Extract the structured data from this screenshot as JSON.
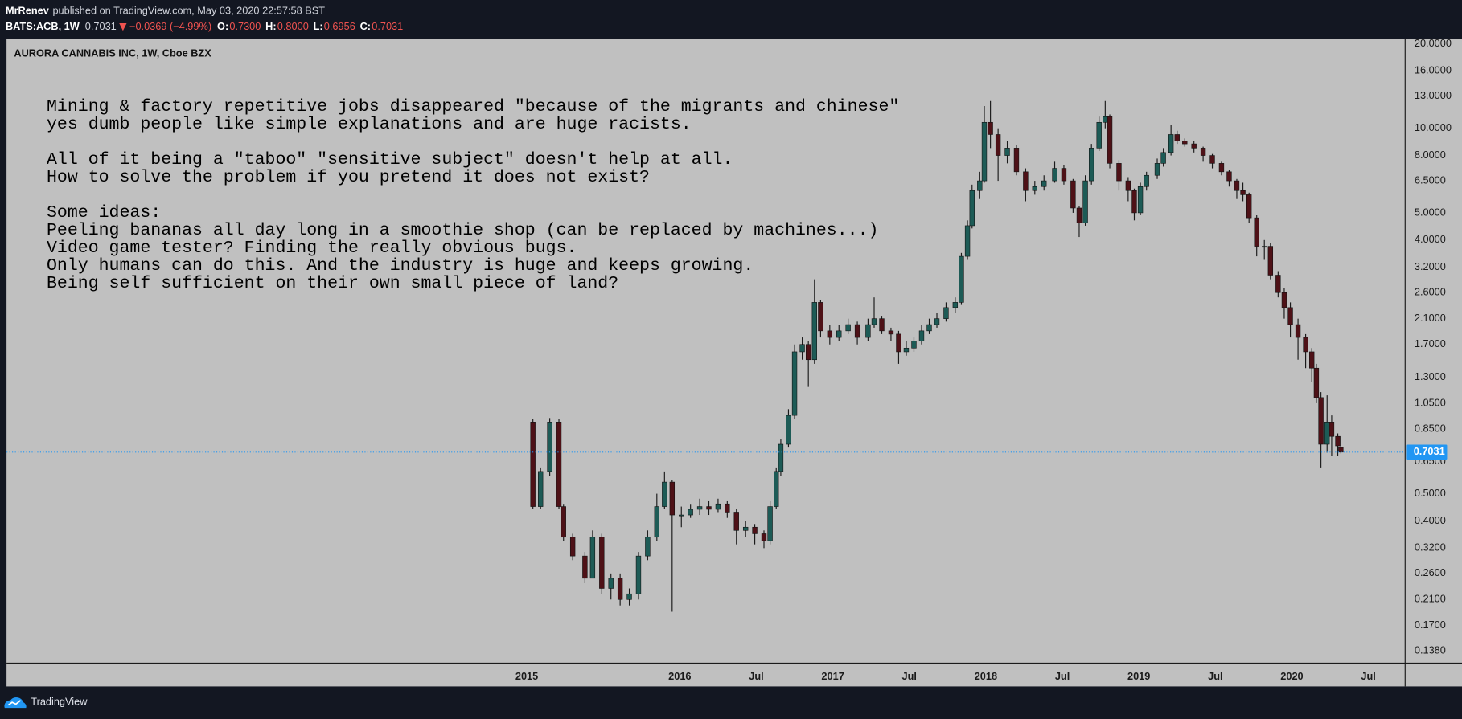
{
  "header": {
    "author": "MrRenev",
    "published": "published on TradingView.com, May 03, 2020 22:57:58 BST",
    "symbol": "BATS:ACB, 1W",
    "price": "0.7031",
    "change": "−0.0369 (−4.99%)",
    "ohlc": [
      {
        "label": "O:",
        "value": "0.7300"
      },
      {
        "label": "H:",
        "value": "0.8000"
      },
      {
        "label": "L:",
        "value": "0.6956"
      },
      {
        "label": "C:",
        "value": "0.7031"
      }
    ]
  },
  "footer": {
    "brand": "TradingView"
  },
  "chart_data": {
    "type": "candlestick",
    "title": "AURORA CANNABIS INC, 1W, Cboe BZX",
    "annotation": [
      [
        "Mining & factory repetitive jobs disappeared \"because of the migrants and chinese\"",
        "yes dumb people like simple explanations and are huge racists."
      ],
      [
        "All of it being a \"taboo\" \"sensitive subject\" doesn't help at all.",
        "How to solve the problem if you pretend it does not exist?"
      ],
      [
        "Some ideas:",
        "Peeling bananas all day long in a smoothie shop (can be replaced by machines...)",
        "Video game tester? Finding the really obvious bugs.",
        "Only humans can do this. And the industry is huge and keeps growing.",
        "Being self sufficient on their own small piece of land?"
      ]
    ],
    "x": [
      2015.04,
      2015.09,
      2015.15,
      2015.21,
      2015.24,
      2015.3,
      2015.38,
      2015.43,
      2015.49,
      2015.55,
      2015.61,
      2015.67,
      2015.73,
      2015.79,
      2015.85,
      2015.9,
      2015.95,
      2016.01,
      2016.07,
      2016.13,
      2016.19,
      2016.25,
      2016.31,
      2016.37,
      2016.43,
      2016.49,
      2016.55,
      2016.59,
      2016.63,
      2016.66,
      2016.71,
      2016.75,
      2016.8,
      2016.84,
      2016.88,
      2016.92,
      2016.98,
      2017.04,
      2017.1,
      2017.16,
      2017.23,
      2017.27,
      2017.32,
      2017.38,
      2017.43,
      2017.48,
      2017.53,
      2017.58,
      2017.63,
      2017.68,
      2017.74,
      2017.8,
      2017.84,
      2017.88,
      2017.91,
      2017.96,
      2017.99,
      2018.03,
      2018.08,
      2018.14,
      2018.2,
      2018.26,
      2018.32,
      2018.38,
      2018.45,
      2018.51,
      2018.57,
      2018.61,
      2018.65,
      2018.69,
      2018.74,
      2018.78,
      2018.81,
      2018.87,
      2018.93,
      2018.97,
      2019.01,
      2019.05,
      2019.12,
      2019.16,
      2019.21,
      2019.25,
      2019.3,
      2019.36,
      2019.42,
      2019.48,
      2019.54,
      2019.59,
      2019.64,
      2019.68,
      2019.72,
      2019.77,
      2019.82,
      2019.86,
      2019.91,
      2019.95,
      2019.99,
      2020.04,
      2020.09,
      2020.13,
      2020.16,
      2020.19,
      2020.23,
      2020.26,
      2020.3,
      2020.32
    ],
    "open": [
      0.9,
      0.45,
      0.6,
      0.9,
      0.45,
      0.35,
      0.3,
      0.25,
      0.35,
      0.23,
      0.25,
      0.21,
      0.22,
      0.3,
      0.35,
      0.45,
      0.55,
      0.42,
      0.42,
      0.44,
      0.45,
      0.44,
      0.46,
      0.43,
      0.37,
      0.38,
      0.36,
      0.34,
      0.45,
      0.6,
      0.75,
      0.95,
      1.6,
      1.7,
      1.5,
      2.4,
      1.9,
      1.8,
      1.9,
      2.0,
      1.8,
      2.0,
      2.1,
      1.9,
      1.85,
      1.6,
      1.65,
      1.75,
      1.9,
      2.0,
      2.1,
      2.3,
      2.4,
      3.5,
      4.5,
      6.0,
      6.5,
      10.5,
      9.5,
      8.0,
      8.5,
      7.0,
      6.0,
      6.2,
      6.5,
      7.2,
      6.5,
      5.2,
      4.6,
      6.5,
      8.5,
      10.5,
      11.0,
      7.5,
      6.5,
      6.0,
      5.0,
      6.2,
      6.8,
      7.5,
      8.2,
      9.5,
      9.0,
      8.8,
      8.5,
      8.0,
      7.5,
      7.0,
      6.5,
      6.0,
      5.8,
      4.8,
      3.8,
      3.8,
      3.0,
      2.6,
      2.3,
      2.0,
      1.8,
      1.6,
      1.4,
      1.1,
      0.75,
      0.9,
      0.8,
      0.73
    ],
    "high": [
      0.92,
      0.62,
      0.93,
      0.92,
      0.46,
      0.36,
      0.31,
      0.37,
      0.36,
      0.26,
      0.26,
      0.23,
      0.31,
      0.37,
      0.5,
      0.6,
      0.56,
      0.45,
      0.46,
      0.48,
      0.47,
      0.48,
      0.47,
      0.44,
      0.4,
      0.39,
      0.37,
      0.47,
      0.62,
      0.78,
      1.0,
      1.7,
      1.8,
      1.75,
      2.9,
      2.45,
      2.0,
      2.0,
      2.1,
      2.05,
      2.1,
      2.5,
      2.15,
      1.95,
      1.9,
      1.75,
      1.8,
      2.0,
      2.1,
      2.2,
      2.4,
      2.5,
      3.6,
      4.7,
      6.3,
      7.0,
      12.0,
      12.5,
      10.0,
      9.0,
      8.7,
      7.2,
      6.5,
      6.8,
      7.6,
      7.4,
      6.6,
      5.3,
      6.8,
      8.8,
      11.0,
      12.5,
      11.2,
      7.7,
      6.7,
      6.1,
      6.4,
      7.0,
      7.8,
      8.5,
      10.3,
      9.8,
      9.2,
      9.0,
      8.6,
      8.1,
      7.6,
      7.1,
      6.6,
      6.4,
      5.9,
      4.9,
      4.0,
      3.9,
      3.1,
      2.7,
      2.4,
      2.1,
      1.85,
      1.65,
      1.45,
      1.15,
      1.12,
      0.95,
      0.82,
      0.8
    ],
    "low": [
      0.44,
      0.44,
      0.58,
      0.44,
      0.34,
      0.29,
      0.24,
      0.25,
      0.22,
      0.21,
      0.2,
      0.2,
      0.21,
      0.29,
      0.34,
      0.44,
      0.19,
      0.38,
      0.41,
      0.42,
      0.42,
      0.43,
      0.41,
      0.33,
      0.35,
      0.33,
      0.32,
      0.33,
      0.44,
      0.58,
      0.73,
      0.92,
      1.5,
      1.2,
      1.45,
      1.8,
      1.7,
      1.75,
      1.85,
      1.7,
      1.75,
      1.95,
      1.85,
      1.75,
      1.45,
      1.55,
      1.6,
      1.7,
      1.85,
      1.95,
      2.05,
      2.2,
      2.35,
      3.4,
      4.4,
      5.6,
      6.4,
      8.5,
      6.5,
      7.5,
      6.8,
      5.5,
      5.8,
      6.0,
      6.4,
      6.3,
      5.0,
      4.1,
      4.5,
      6.3,
      8.3,
      10.0,
      7.2,
      6.0,
      5.5,
      4.7,
      4.9,
      6.0,
      6.6,
      7.3,
      8.0,
      8.8,
      8.6,
      8.2,
      7.6,
      7.2,
      6.8,
      6.2,
      5.6,
      5.5,
      4.6,
      3.5,
      3.4,
      2.9,
      2.5,
      2.1,
      1.8,
      1.5,
      1.4,
      1.25,
      1.05,
      0.62,
      0.7,
      0.68,
      0.68,
      0.6956
    ],
    "close": [
      0.45,
      0.6,
      0.9,
      0.45,
      0.35,
      0.3,
      0.25,
      0.35,
      0.23,
      0.25,
      0.21,
      0.22,
      0.3,
      0.35,
      0.45,
      0.55,
      0.42,
      0.42,
      0.44,
      0.45,
      0.44,
      0.46,
      0.43,
      0.37,
      0.38,
      0.36,
      0.34,
      0.45,
      0.6,
      0.75,
      0.95,
      1.6,
      1.7,
      1.5,
      2.4,
      1.9,
      1.8,
      1.9,
      2.0,
      1.8,
      2.0,
      2.1,
      1.9,
      1.85,
      1.6,
      1.65,
      1.75,
      1.9,
      2.0,
      2.1,
      2.3,
      2.4,
      3.5,
      4.5,
      6.0,
      6.5,
      10.5,
      9.5,
      8.0,
      8.5,
      7.0,
      6.0,
      6.2,
      6.5,
      7.2,
      6.5,
      5.2,
      4.6,
      6.5,
      8.5,
      10.5,
      11.0,
      7.5,
      6.5,
      6.0,
      5.0,
      6.2,
      6.8,
      7.5,
      8.2,
      9.5,
      9.0,
      8.8,
      8.5,
      8.0,
      7.5,
      7.0,
      6.5,
      6.0,
      5.8,
      4.8,
      3.8,
      3.8,
      3.0,
      2.6,
      2.3,
      2.0,
      1.8,
      1.6,
      1.4,
      1.1,
      0.75,
      0.9,
      0.8,
      0.74,
      0.7031
    ],
    "up_color": "#1d5b56",
    "down_color": "#4e1117",
    "wick_color": "#1a1a1a",
    "last_price": 0.7031,
    "last_price_color": "#2196f3",
    "xlim": [
      2011.6,
      2020.74
    ],
    "xticks": [
      2015,
      2016,
      {
        "value": 2016.5,
        "label": "Jul"
      },
      2017,
      {
        "value": 2017.5,
        "label": "Jul"
      },
      2018,
      {
        "value": 2018.5,
        "label": "Jul"
      },
      2019,
      {
        "value": 2019.5,
        "label": "Jul"
      },
      2020,
      {
        "value": 2020.5,
        "label": "Jul"
      }
    ],
    "ylim": [
      0.1247,
      20.77
    ],
    "yscale": "log",
    "yticks": [
      {
        "value": 20,
        "label": "20.0000"
      },
      {
        "value": 16,
        "label": "16.0000"
      },
      {
        "value": 13,
        "label": "13.0000"
      },
      {
        "value": 10,
        "label": "10.0000"
      },
      {
        "value": 8,
        "label": "8.0000"
      },
      {
        "value": 6.5,
        "label": "6.5000"
      },
      {
        "value": 5,
        "label": "5.0000"
      },
      {
        "value": 4,
        "label": "4.0000"
      },
      {
        "value": 3.2,
        "label": "3.2000"
      },
      {
        "value": 2.6,
        "label": "2.6000"
      },
      {
        "value": 2.1,
        "label": "2.1000"
      },
      {
        "value": 1.7,
        "label": "1.7000"
      },
      {
        "value": 1.3,
        "label": "1.3000"
      },
      {
        "value": 1.05,
        "label": "1.0500"
      },
      {
        "value": 0.85,
        "label": "0.8500"
      },
      {
        "value": 0.65,
        "label": "0.6500"
      },
      {
        "value": 0.5,
        "label": "0.5000"
      },
      {
        "value": 0.4,
        "label": "0.4000"
      },
      {
        "value": 0.32,
        "label": "0.3200"
      },
      {
        "value": 0.26,
        "label": "0.2600"
      },
      {
        "value": 0.21,
        "label": "0.2100"
      },
      {
        "value": 0.17,
        "label": "0.1700"
      },
      {
        "value": 0.138,
        "label": "0.1380"
      }
    ],
    "grid": false
  }
}
